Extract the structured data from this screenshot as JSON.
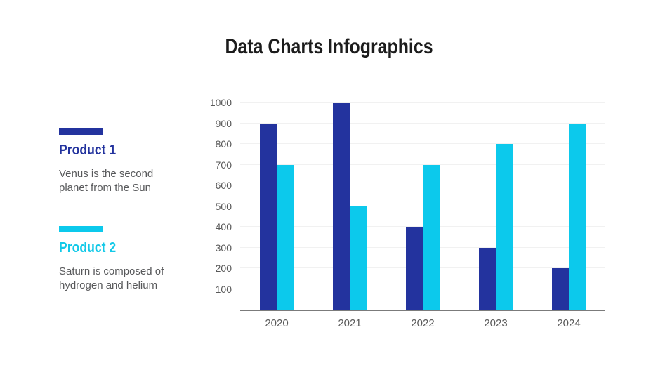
{
  "page": {
    "title": "Data Charts Infographics"
  },
  "legend": {
    "items": [
      {
        "label": "Product 1",
        "description": "Venus is the second planet from the Sun",
        "color": "#23339E",
        "label_color": "#23339E"
      },
      {
        "label": "Product 2",
        "description": "Saturn is composed of hydrogen and helium",
        "color": "#0CC9EC",
        "label_color": "#12C9E8"
      }
    ]
  },
  "chart_data": {
    "type": "bar",
    "title": "Data Charts Infographics",
    "categories": [
      "2020",
      "2021",
      "2022",
      "2023",
      "2024"
    ],
    "series": [
      {
        "name": "Product 1",
        "color": "#23339E",
        "values": [
          900,
          1000,
          400,
          300,
          200
        ]
      },
      {
        "name": "Product 2",
        "color": "#0CC9EC",
        "values": [
          700,
          500,
          700,
          800,
          900
        ]
      }
    ],
    "xlabel": "",
    "ylabel": "",
    "ylim": [
      0,
      1000
    ],
    "yticks": [
      100,
      200,
      300,
      400,
      500,
      600,
      700,
      800,
      900,
      1000
    ],
    "grid": true,
    "legend_position": "left",
    "axis_color": "#7B7B7B",
    "grid_color": "#F1F1F1",
    "tick_label_color": "#595959"
  }
}
